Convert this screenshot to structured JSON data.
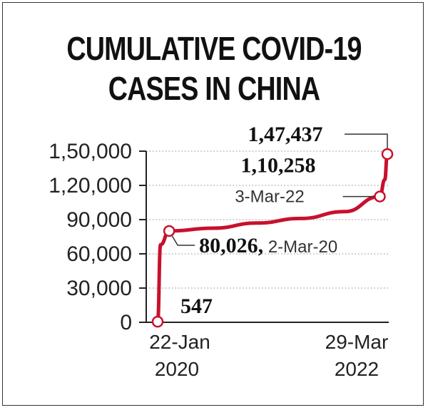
{
  "chart_data": {
    "type": "line",
    "title_line1": "CUMULATIVE COVID-19",
    "title_line2": "CASES IN CHINA",
    "xlabel": "",
    "ylabel": "",
    "ylim": [
      0,
      150000
    ],
    "yticks": [
      0,
      30000,
      60000,
      90000,
      120000,
      150000
    ],
    "ytick_labels": [
      "0",
      "30,000",
      "60,000",
      "90,000",
      "1,20,000",
      "1,50,000"
    ],
    "grid": "horizontal dotted",
    "line_color": "#c8102e",
    "x_tick_labels": [
      {
        "top": "22-Jan",
        "bottom": "2020"
      },
      {
        "top": "29-Mar",
        "bottom": "2022"
      }
    ],
    "series": [
      {
        "points": [
          {
            "date": "2020-01-22",
            "value": 547
          },
          {
            "date": "2020-02-01",
            "value": 68000
          },
          {
            "date": "2020-03-02",
            "value": 80026
          },
          {
            "date": "2020-08-01",
            "value": 82500
          },
          {
            "date": "2021-01-01",
            "value": 87000
          },
          {
            "date": "2021-06-01",
            "value": 91000
          },
          {
            "date": "2021-11-01",
            "value": 97000
          },
          {
            "date": "2022-03-03",
            "value": 110258
          },
          {
            "date": "2022-03-20",
            "value": 125000
          },
          {
            "date": "2022-03-29",
            "value": 147437
          }
        ]
      }
    ],
    "markers": [
      {
        "date": "2020-01-22",
        "value": 547
      },
      {
        "date": "2020-03-02",
        "value": 80026
      },
      {
        "date": "2022-03-03",
        "value": 110258
      },
      {
        "date": "2022-03-29",
        "value": 147437
      }
    ],
    "annotations": {
      "a547": {
        "bold": "547"
      },
      "a80026": {
        "bold": "80,026,",
        "text": " 2-Mar-20"
      },
      "a110258": {
        "bold": "1,10,258",
        "text": "3-Mar-22"
      },
      "a147437": {
        "bold": "1,47,437"
      }
    }
  }
}
